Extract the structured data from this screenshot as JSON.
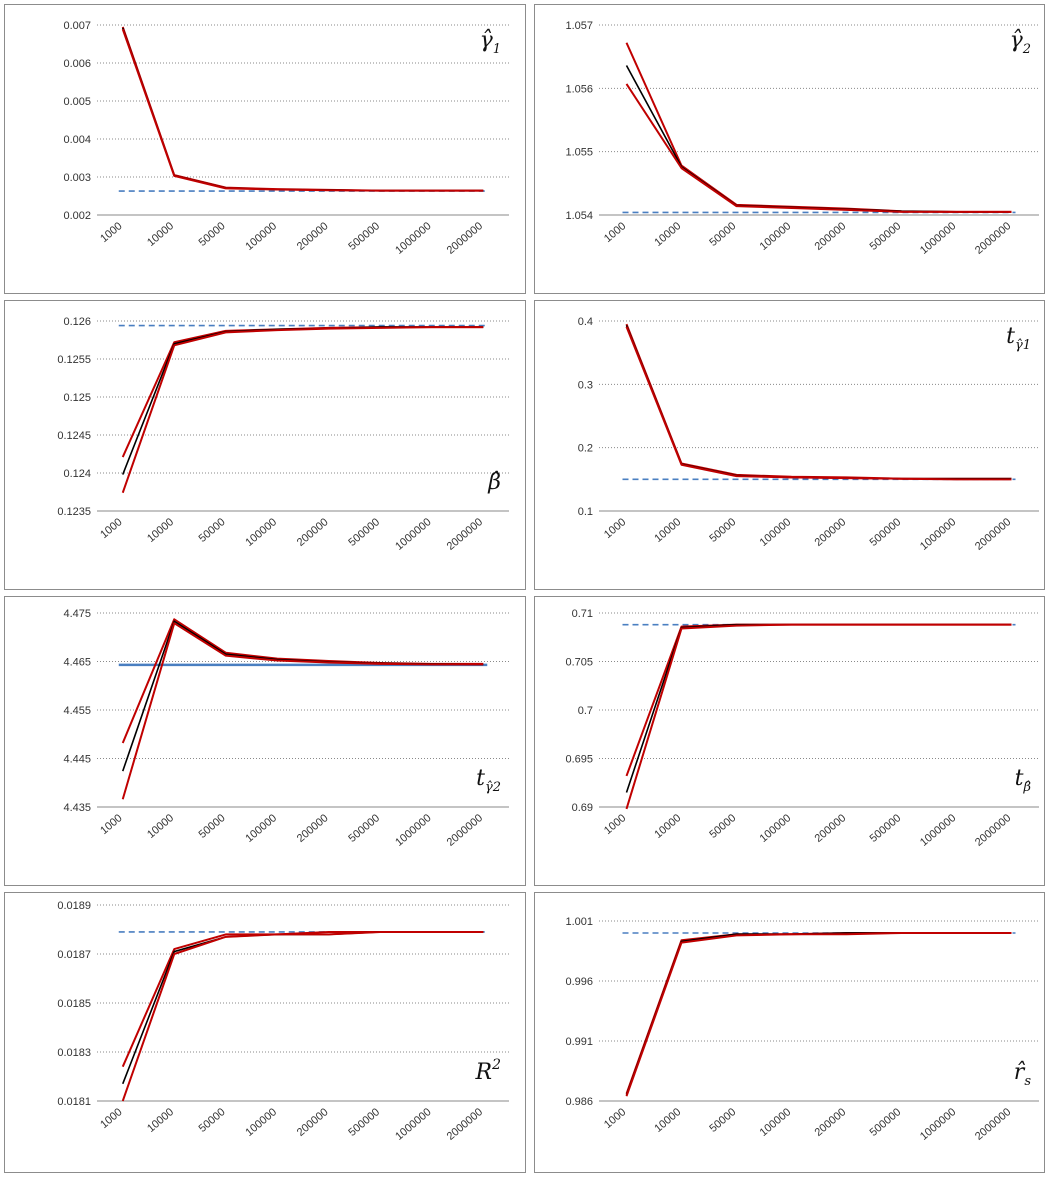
{
  "chart_data": [
    {
      "type": "line",
      "label": {
        "main": "γ̂",
        "sub": "1",
        "sup": ""
      },
      "categories": [
        "1000",
        "10000",
        "50000",
        "100000",
        "200000",
        "500000",
        "1000000",
        "2000000"
      ],
      "ylim": [
        0.002,
        0.007
      ],
      "yticks": [
        "0.002",
        "0.003",
        "0.004",
        "0.005",
        "0.006",
        "0.007"
      ],
      "grid": true,
      "reference": 0.00263,
      "series": [
        {
          "color": "#c00000",
          "values": [
            0.00695,
            0.00305,
            0.00272,
            0.00268,
            0.00266,
            0.00264,
            0.00264,
            0.00264
          ]
        },
        {
          "color": "#000000",
          "values": [
            0.00692,
            0.00304,
            0.00271,
            0.00267,
            0.00266,
            0.00264,
            0.00264,
            0.00264
          ]
        },
        {
          "color": "#c00000",
          "values": [
            0.00689,
            0.00303,
            0.0027,
            0.00267,
            0.00265,
            0.00264,
            0.00264,
            0.00264
          ]
        }
      ]
    },
    {
      "type": "line",
      "label": {
        "main": "γ̂",
        "sub": "2",
        "sup": ""
      },
      "categories": [
        "1000",
        "10000",
        "50000",
        "100000",
        "200000",
        "500000",
        "1000000",
        "2000000"
      ],
      "ylim": [
        1.054,
        1.057
      ],
      "yticks": [
        "1.054",
        "1.055",
        "1.056",
        "1.057"
      ],
      "grid": true,
      "reference": 1.05404,
      "series": [
        {
          "color": "#c00000",
          "values": [
            1.05672,
            1.05478,
            1.05416,
            1.05413,
            1.0541,
            1.05406,
            1.05405,
            1.05405
          ]
        },
        {
          "color": "#000000",
          "values": [
            1.05636,
            1.05476,
            1.05415,
            1.05412,
            1.05409,
            1.05406,
            1.05405,
            1.05405
          ]
        },
        {
          "color": "#c00000",
          "values": [
            1.05607,
            1.05474,
            1.05414,
            1.05411,
            1.05408,
            1.05405,
            1.05405,
            1.05405
          ]
        }
      ]
    },
    {
      "type": "line",
      "label": {
        "main": "β̂",
        "sub": "",
        "sup": ""
      },
      "categories": [
        "1000",
        "10000",
        "50000",
        "100000",
        "200000",
        "500000",
        "1000000",
        "2000000"
      ],
      "ylim": [
        0.1235,
        0.126
      ],
      "yticks": [
        "0.1235",
        "0.124",
        "0.1245",
        "0.125",
        "0.1255",
        "0.126"
      ],
      "grid": true,
      "reference": 0.12594,
      "series": [
        {
          "color": "#c00000",
          "values": [
            0.12421,
            0.12572,
            0.12587,
            0.12589,
            0.12591,
            0.12592,
            0.12592,
            0.12592
          ]
        },
        {
          "color": "#000000",
          "values": [
            0.12398,
            0.1257,
            0.12586,
            0.12589,
            0.1259,
            0.12592,
            0.12592,
            0.12592
          ]
        },
        {
          "color": "#c00000",
          "values": [
            0.12374,
            0.12568,
            0.12585,
            0.12588,
            0.1259,
            0.12591,
            0.12592,
            0.12592
          ]
        }
      ]
    },
    {
      "type": "line",
      "label": {
        "main": "t",
        "sub": "γ̂1",
        "sup": ""
      },
      "categories": [
        "1000",
        "10000",
        "50000",
        "100000",
        "200000",
        "500000",
        "1000000",
        "2000000"
      ],
      "ylim": [
        0.1,
        0.4
      ],
      "yticks": [
        "0.1",
        "0.2",
        "0.3",
        "0.4"
      ],
      "grid": true,
      "reference": 0.15,
      "series": [
        {
          "color": "#c00000",
          "values": [
            0.395,
            0.175,
            0.157,
            0.154,
            0.153,
            0.151,
            0.151,
            0.151
          ]
        },
        {
          "color": "#000000",
          "values": [
            0.393,
            0.174,
            0.156,
            0.153,
            0.152,
            0.151,
            0.151,
            0.151
          ]
        },
        {
          "color": "#c00000",
          "values": [
            0.391,
            0.173,
            0.155,
            0.153,
            0.152,
            0.151,
            0.15,
            0.15
          ]
        }
      ]
    },
    {
      "type": "line",
      "label": {
        "main": "t",
        "sub": "γ̂2",
        "sup": ""
      },
      "categories": [
        "1000",
        "10000",
        "50000",
        "100000",
        "200000",
        "500000",
        "1000000",
        "2000000"
      ],
      "ylim": [
        4.435,
        4.475
      ],
      "yticks": [
        "4.435",
        "4.445",
        "4.455",
        "4.465",
        "4.475"
      ],
      "grid": true,
      "reference": 4.4643,
      "reference_solid": true,
      "series": [
        {
          "color": "#c00000",
          "values": [
            4.4482,
            4.4737,
            4.4668,
            4.4656,
            4.4651,
            4.4647,
            4.4645,
            4.4645
          ]
        },
        {
          "color": "#000000",
          "values": [
            4.4424,
            4.4733,
            4.4665,
            4.4654,
            4.4649,
            4.4646,
            4.4645,
            4.4644
          ]
        },
        {
          "color": "#c00000",
          "values": [
            4.4366,
            4.4729,
            4.4662,
            4.4652,
            4.4648,
            4.4645,
            4.4644,
            4.4644
          ]
        }
      ]
    },
    {
      "type": "line",
      "label": {
        "main": "t",
        "sub": "β̂",
        "sup": ""
      },
      "categories": [
        "1000",
        "10000",
        "50000",
        "100000",
        "200000",
        "500000",
        "1000000",
        "2000000"
      ],
      "ylim": [
        0.69,
        0.71
      ],
      "yticks": [
        "0.69",
        "0.695",
        "0.7",
        "0.705",
        "0.71"
      ],
      "grid": true,
      "reference": 0.7088,
      "series": [
        {
          "color": "#c00000",
          "values": [
            0.6932,
            0.7086,
            0.7088,
            0.7088,
            0.7088,
            0.7088,
            0.7088,
            0.7088
          ]
        },
        {
          "color": "#000000",
          "values": [
            0.6915,
            0.7085,
            0.7088,
            0.7088,
            0.7088,
            0.7088,
            0.7088,
            0.7088
          ]
        },
        {
          "color": "#c00000",
          "values": [
            0.6898,
            0.7084,
            0.7087,
            0.7088,
            0.7088,
            0.7088,
            0.7088,
            0.7088
          ]
        }
      ]
    },
    {
      "type": "line",
      "label": {
        "main": "R",
        "sub": "",
        "sup": "2"
      },
      "categories": [
        "1000",
        "10000",
        "50000",
        "100000",
        "200000",
        "500000",
        "1000000",
        "2000000"
      ],
      "ylim": [
        0.0181,
        0.0189
      ],
      "yticks": [
        "0.0181",
        "0.0183",
        "0.0185",
        "0.0187",
        "0.0189"
      ],
      "grid": true,
      "reference": 0.01879,
      "series": [
        {
          "color": "#c00000",
          "values": [
            0.01824,
            0.01872,
            0.01878,
            0.01878,
            0.01879,
            0.01879,
            0.01879,
            0.01879
          ]
        },
        {
          "color": "#000000",
          "values": [
            0.01817,
            0.01871,
            0.01877,
            0.01878,
            0.01878,
            0.01879,
            0.01879,
            0.01879
          ]
        },
        {
          "color": "#c00000",
          "values": [
            0.0181,
            0.0187,
            0.01877,
            0.01878,
            0.01878,
            0.01879,
            0.01879,
            0.01879
          ]
        }
      ]
    },
    {
      "type": "line",
      "label": {
        "main": "r̂",
        "sub": "s",
        "sup": ""
      },
      "categories": [
        "1000",
        "10000",
        "50000",
        "100000",
        "200000",
        "500000",
        "1000000",
        "2000000"
      ],
      "ylim": [
        0.986,
        1.001
      ],
      "yticks": [
        "0.986",
        "0.991",
        "0.996",
        "1.001"
      ],
      "grid": true,
      "reference": 1.0,
      "series": [
        {
          "color": "#c00000",
          "values": [
            0.9866,
            0.9994,
            0.9999,
            0.9999,
            1.0,
            1.0,
            1.0,
            1.0
          ]
        },
        {
          "color": "#000000",
          "values": [
            0.9865,
            0.9993,
            0.9999,
            0.9999,
            1.0,
            1.0,
            1.0,
            1.0
          ]
        },
        {
          "color": "#c00000",
          "values": [
            0.9864,
            0.9992,
            0.9998,
            0.9999,
            0.9999,
            1.0,
            1.0,
            1.0
          ]
        }
      ]
    }
  ]
}
